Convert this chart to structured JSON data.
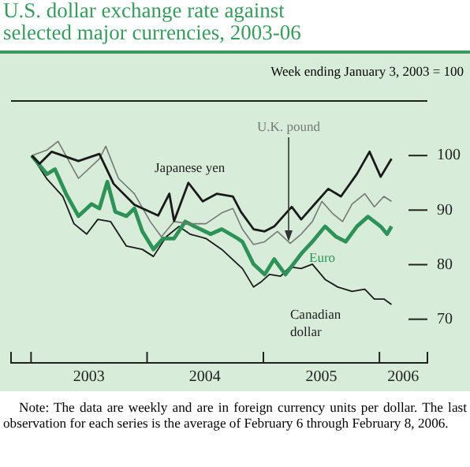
{
  "chart_data": {
    "type": "line",
    "title": "U.S. dollar exchange rate against selected major currencies, 2003-06",
    "subtitle": "Week ending January 3, 2003 = 100",
    "annotations": [
      "Note: The data are weekly and are in foreign currency units per dollar. The last observation for each series is the average of February 6 through February 8, 2006."
    ],
    "xlim": [
      "2002-10-30",
      "2006-06-01"
    ],
    "xticks": [
      {
        "value": "2002-10-30",
        "label": null
      },
      {
        "value": "2003-01-01",
        "label": null
      },
      {
        "value": "2003-07-02",
        "label": "2003"
      },
      {
        "value": "2004-01-01",
        "label": null
      },
      {
        "value": "2004-07-01",
        "label": "2004"
      },
      {
        "value": "2005-01-01",
        "label": null
      },
      {
        "value": "2005-07-02",
        "label": "2005"
      },
      {
        "value": "2006-01-01",
        "label": null
      },
      {
        "value": "2006-03-17",
        "label": "2006"
      },
      {
        "value": "2006-06-01",
        "label": null
      }
    ],
    "ylim": [
      62,
      110
    ],
    "yticks": [
      70,
      80,
      90,
      100
    ],
    "grid": false,
    "legend": false,
    "series": [
      {
        "name": "Japanese yen",
        "color": "#1a1a1a",
        "x": [
          "2003-01-03",
          "2003-01-28",
          "2003-03-07",
          "2003-05-30",
          "2003-08-04",
          "2003-09-18",
          "2003-11-22",
          "2004-02-05",
          "2004-03-11",
          "2004-03-26",
          "2004-05-10",
          "2004-06-24",
          "2004-08-08",
          "2004-09-27",
          "2004-10-22",
          "2004-12-01",
          "2005-01-05",
          "2005-02-04",
          "2005-03-31",
          "2005-04-30",
          "2005-06-19",
          "2005-07-24",
          "2005-09-02",
          "2005-10-22",
          "2005-12-01",
          "2006-01-05",
          "2006-02-08"
        ],
        "values": [
          100,
          98.5,
          100.7,
          99,
          100.3,
          94.8,
          91,
          89,
          93,
          88,
          95,
          91.6,
          93,
          92.5,
          89.7,
          86.5,
          86.1,
          87,
          90.6,
          88.3,
          91.6,
          93.9,
          92.5,
          96.6,
          100.7,
          96.1,
          99.4
        ]
      },
      {
        "name": "U.K. pound",
        "color": "#777777",
        "x": [
          "2003-01-03",
          "2003-02-20",
          "2003-03-27",
          "2003-05-30",
          "2003-08-04",
          "2003-08-24",
          "2003-10-03",
          "2003-11-22",
          "2004-01-11",
          "2004-02-15",
          "2004-03-26",
          "2004-05-15",
          "2004-07-04",
          "2004-08-23",
          "2004-09-27",
          "2004-10-27",
          "2004-12-01",
          "2005-01-05",
          "2005-02-14",
          "2005-03-26",
          "2005-04-30",
          "2005-06-04",
          "2005-07-04",
          "2005-08-08",
          "2005-09-07",
          "2005-10-07",
          "2005-11-16",
          "2005-12-16",
          "2006-01-15",
          "2006-02-08"
        ],
        "values": [
          100,
          101,
          102.6,
          95.8,
          99.4,
          101.7,
          95.8,
          93,
          87.9,
          85.1,
          87.9,
          87.5,
          87.5,
          89.5,
          90.3,
          86.5,
          83.7,
          84.2,
          86.1,
          83.9,
          85.6,
          87.9,
          91.6,
          89.3,
          87.9,
          91.1,
          93,
          90.6,
          92.5,
          91.6
        ]
      },
      {
        "name": "Euro",
        "color": "#2e9158",
        "x": [
          "2003-01-03",
          "2003-02-20",
          "2003-03-17",
          "2003-04-21",
          "2003-05-30",
          "2003-07-10",
          "2003-08-04",
          "2003-08-29",
          "2003-09-23",
          "2003-10-28",
          "2003-11-22",
          "2003-12-17",
          "2004-01-21",
          "2004-02-20",
          "2004-03-26",
          "2004-04-30",
          "2004-05-30",
          "2004-07-19",
          "2004-08-23",
          "2004-10-12",
          "2004-10-27",
          "2004-12-01",
          "2005-01-05",
          "2005-02-04",
          "2005-03-11",
          "2005-04-30",
          "2005-06-04",
          "2005-07-14",
          "2005-08-18",
          "2005-09-17",
          "2005-10-22",
          "2005-11-26",
          "2006-01-05",
          "2006-01-25",
          "2006-02-08"
        ],
        "values": [
          100,
          96.6,
          97.5,
          93,
          88.9,
          91.1,
          90.3,
          95.2,
          89.7,
          88.9,
          90.3,
          86.1,
          82.8,
          84.8,
          84.8,
          87.9,
          87,
          85.6,
          86.5,
          84.8,
          84.2,
          80.1,
          78.2,
          81,
          78.2,
          82,
          84.2,
          87,
          85.1,
          84.2,
          87,
          88.8,
          87,
          85.6,
          87
        ]
      },
      {
        "name": "Canadian dollar",
        "color": "#1a1a1a",
        "x": [
          "2003-01-03",
          "2003-02-20",
          "2003-04-11",
          "2003-05-16",
          "2003-06-25",
          "2003-07-30",
          "2003-09-08",
          "2003-10-28",
          "2003-12-17",
          "2004-01-21",
          "2004-03-01",
          "2004-04-10",
          "2004-05-15",
          "2004-07-04",
          "2004-08-23",
          "2004-10-12",
          "2004-10-27",
          "2004-12-01",
          "2004-12-26",
          "2005-01-20",
          "2005-02-24",
          "2005-03-26",
          "2005-04-30",
          "2005-06-04",
          "2005-07-14",
          "2005-08-23",
          "2005-10-07",
          "2005-11-16",
          "2005-12-16",
          "2006-01-15",
          "2006-02-08"
        ],
        "values": [
          100,
          95.7,
          92.5,
          87.5,
          85.6,
          88.3,
          87.9,
          83.4,
          82.8,
          81.5,
          85.1,
          87,
          85.6,
          84.8,
          82.8,
          80.1,
          79.3,
          75.9,
          76.9,
          78.2,
          77.9,
          79.6,
          79.3,
          80.1,
          77.3,
          75.9,
          75.1,
          75.5,
          73.7,
          73.7,
          72.7
        ]
      }
    ]
  }
}
